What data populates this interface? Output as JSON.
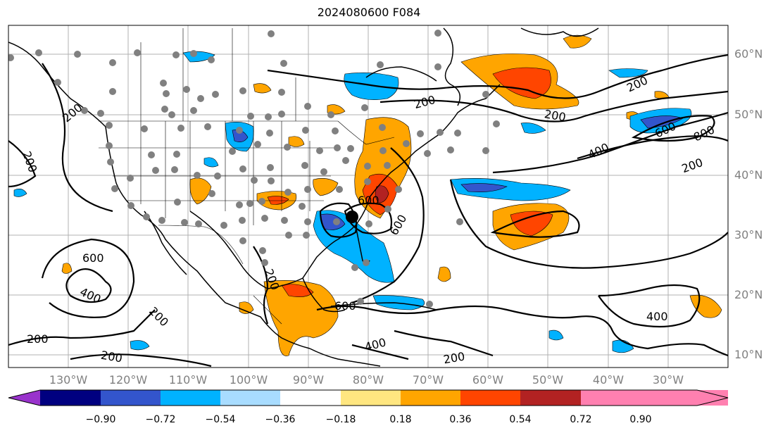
{
  "title": "2024080600 F084",
  "lat_labels": [
    "60°N",
    "50°N",
    "40°N",
    "30°N",
    "20°N",
    "10°N"
  ],
  "lon_labels": [
    "130°W",
    "120°W",
    "110°W",
    "100°W",
    "90°W",
    "80°W",
    "70°W",
    "60°W",
    "50°W",
    "40°W",
    "30°W"
  ],
  "contour_labels": [
    "200",
    "200",
    "200",
    "200",
    "200",
    "200",
    "200",
    "200",
    "200",
    "200",
    "200",
    "400",
    "400",
    "400",
    "400",
    "600",
    "600",
    "600",
    "600",
    "600",
    "800"
  ],
  "colorbar": {
    "ticks": [
      "−0.90",
      "−0.72",
      "−0.54",
      "−0.36",
      "−0.18",
      "0.18",
      "0.36",
      "0.54",
      "0.72",
      "0.90"
    ],
    "colors": [
      "#9933cc",
      "#000080",
      "#3355cc",
      "#00b2ff",
      "#a8dcff",
      "#ffffff",
      "#ffe680",
      "#ffa500",
      "#ff4500",
      "#b22222",
      "#ff80b0"
    ]
  },
  "colors": {
    "purple": "#9933cc",
    "navy": "#000080",
    "blue": "#3355cc",
    "cyan": "#00b2ff",
    "light_blue": "#a8dcff",
    "yellow": "#ffe680",
    "orange": "#ffa500",
    "red_orange": "#ff4500",
    "dark_red": "#b22222",
    "pink": "#ff80b0",
    "station": "#808080"
  }
}
